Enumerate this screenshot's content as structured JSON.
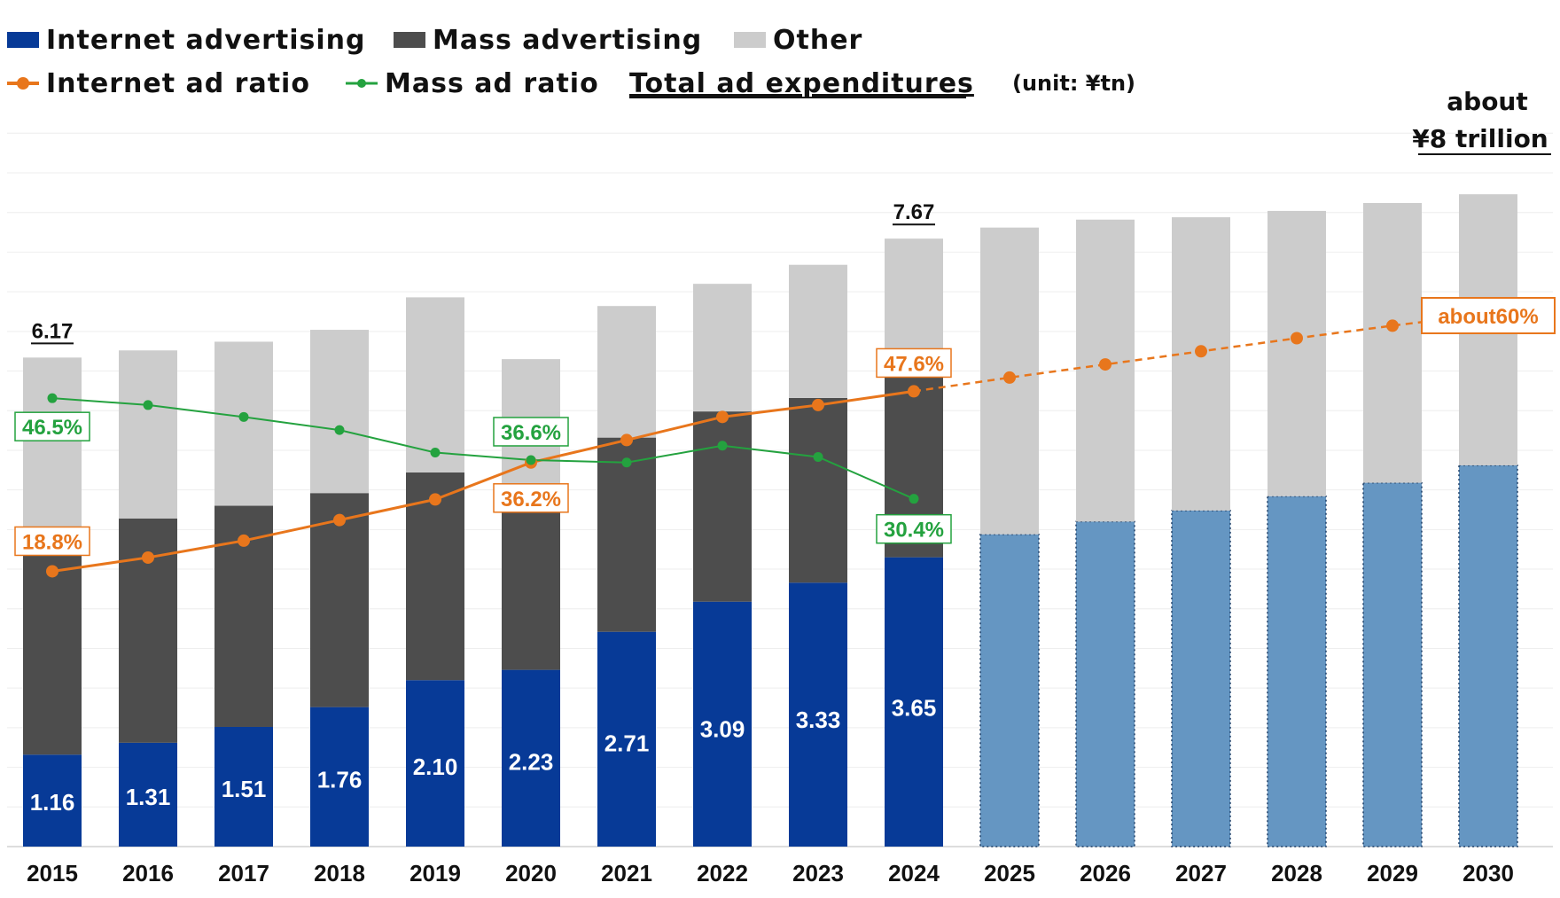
{
  "legend": {
    "internet": "Internet advertising",
    "mass": "Mass advertising",
    "other": "Other",
    "internet_ratio": "Internet ad ratio",
    "mass_ratio": "Mass ad ratio",
    "total": "Total ad expenditures",
    "unit": "(unit: ¥tn)"
  },
  "annotations": {
    "forecast_total_line1": "about",
    "forecast_total_line2": "¥8 trillion",
    "forecast_ratio": "about60%"
  },
  "colors": {
    "internet": "#073a97",
    "internet_forecast": "#6596c2",
    "mass": "#4d4d4d",
    "other": "#cccccc",
    "internet_ratio": "#e8761c",
    "mass_ratio": "#24a23f"
  },
  "chart_data": {
    "type": "bar",
    "stacked": true,
    "unit": "¥tn",
    "categories": [
      "2015",
      "2016",
      "2017",
      "2018",
      "2019",
      "2020",
      "2021",
      "2022",
      "2023",
      "2024",
      "2025",
      "2026",
      "2027",
      "2028",
      "2029",
      "2030"
    ],
    "forecast_from": "2025",
    "ylim": [
      0,
      8.5
    ],
    "series": [
      {
        "name": "Internet advertising",
        "values": [
          1.16,
          1.31,
          1.51,
          1.76,
          2.1,
          2.23,
          2.71,
          3.09,
          3.33,
          3.65,
          3.94,
          4.1,
          4.24,
          4.42,
          4.59,
          4.81
        ]
      },
      {
        "name": "Mass advertising",
        "values": [
          2.84,
          2.83,
          2.79,
          2.7,
          2.62,
          2.25,
          2.45,
          2.4,
          2.33,
          2.36,
          null,
          null,
          null,
          null,
          null,
          null
        ]
      },
      {
        "name": "Other",
        "values": [
          2.17,
          2.12,
          2.07,
          2.06,
          2.21,
          1.67,
          1.66,
          1.61,
          1.68,
          1.66,
          3.87,
          3.81,
          3.7,
          3.6,
          3.53,
          3.42
        ]
      }
    ],
    "totals": [
      6.17,
      6.26,
      6.37,
      6.52,
      6.93,
      6.15,
      6.82,
      7.1,
      7.34,
      7.67,
      7.81,
      7.91,
      7.94,
      8.02,
      8.12,
      8.23
    ],
    "total_labels": {
      "2015": "6.17",
      "2024": "7.67"
    },
    "lines": [
      {
        "name": "Internet ad ratio",
        "unit": "%",
        "values": [
          18.8,
          21.0,
          23.7,
          27.0,
          30.3,
          36.2,
          39.8,
          43.5,
          45.4,
          47.6,
          49.8,
          51.9,
          54.0,
          56.1,
          58.1,
          60.0
        ],
        "dashed_from": "2024"
      },
      {
        "name": "Mass ad ratio",
        "unit": "%",
        "values": [
          46.5,
          45.4,
          43.5,
          41.4,
          37.8,
          36.6,
          36.2,
          38.9,
          37.1,
          30.4,
          null,
          null,
          null,
          null,
          null,
          null
        ]
      }
    ],
    "point_labels": [
      {
        "series": "Internet ad ratio",
        "x": "2015",
        "text": "18.8%"
      },
      {
        "series": "Internet ad ratio",
        "x": "2020",
        "text": "36.2%"
      },
      {
        "series": "Internet ad ratio",
        "x": "2024",
        "text": "47.6%"
      },
      {
        "series": "Mass ad ratio",
        "x": "2015",
        "text": "46.5%"
      },
      {
        "series": "Mass ad ratio",
        "x": "2020",
        "text": "36.6%"
      },
      {
        "series": "Mass ad ratio",
        "x": "2024",
        "text": "30.4%"
      }
    ],
    "grid": true
  }
}
